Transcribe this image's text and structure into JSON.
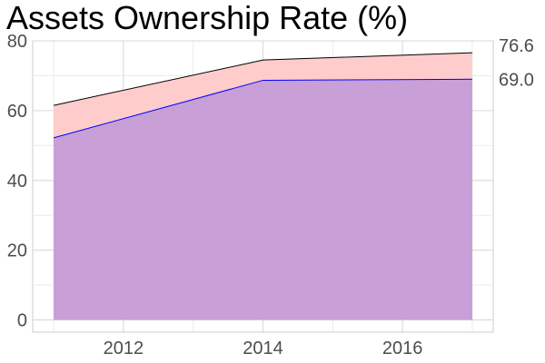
{
  "chart_data": {
    "type": "area",
    "title": "Assets Ownership Rate (%)",
    "xlabel": "",
    "ylabel": "",
    "x": [
      2011,
      2014,
      2017
    ],
    "xlim": [
      2010.7,
      2017.3
    ],
    "ylim": [
      -3.5,
      80
    ],
    "x_ticks": [
      2012,
      2014,
      2016
    ],
    "y_ticks": [
      0,
      20,
      40,
      60,
      80
    ],
    "grid": true,
    "legend": "none",
    "series": [
      {
        "values": [
          61.5,
          74.5,
          76.6
        ],
        "fill": "#ffcccc",
        "line": "#000000",
        "end_label": "76.6"
      },
      {
        "values": [
          52.2,
          68.7,
          69.0
        ],
        "fill": "#c89fd6",
        "line": "#0000ff",
        "end_label": "69.0"
      }
    ]
  }
}
